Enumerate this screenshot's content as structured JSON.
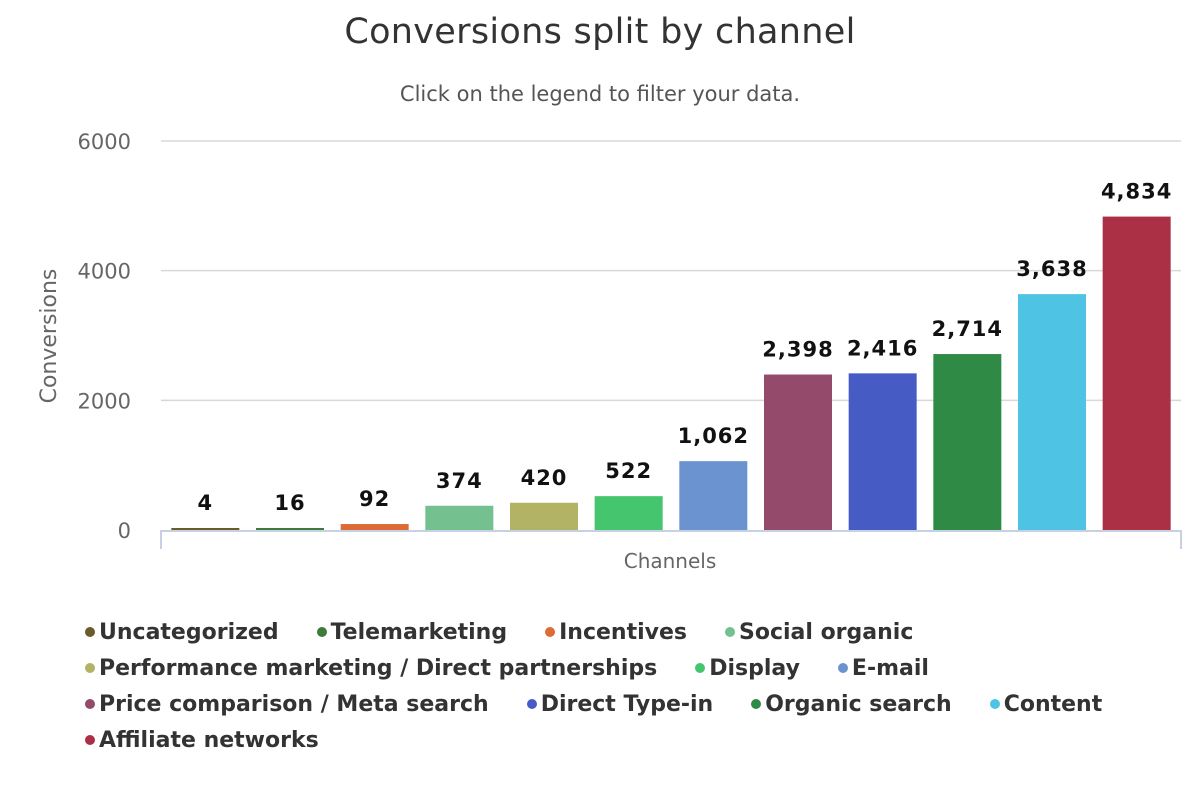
{
  "chart_data": {
    "type": "bar",
    "title": "Conversions split by channel",
    "subtitle": "Click on the legend to filter your data.",
    "xlabel": "Channels",
    "ylabel": "Conversions",
    "ylim": [
      0,
      6000
    ],
    "yticks": [
      "0",
      "2000",
      "4000",
      "6000"
    ],
    "ytick_values": [
      0,
      2000,
      4000,
      6000
    ],
    "grid": true,
    "legend_position": "bottom",
    "series": [
      {
        "name": "Uncategorized",
        "value": 4,
        "label": "4",
        "color": "#6b5a2a"
      },
      {
        "name": "Telemarketing",
        "value": 16,
        "label": "16",
        "color": "#3e7a3a"
      },
      {
        "name": "Incentives",
        "value": 92,
        "label": "92",
        "color": "#dd6b36"
      },
      {
        "name": "Social organic",
        "value": 374,
        "label": "374",
        "color": "#74c08f"
      },
      {
        "name": "Performance marketing / Direct partnerships",
        "value": 420,
        "label": "420",
        "color": "#b2b365"
      },
      {
        "name": "Display",
        "value": 522,
        "label": "522",
        "color": "#45c56e"
      },
      {
        "name": "E-mail",
        "value": 1062,
        "label": "1,062",
        "color": "#6b93cf"
      },
      {
        "name": "Price comparison / Meta search",
        "value": 2398,
        "label": "2,398",
        "color": "#944a6b"
      },
      {
        "name": "Direct Type-in",
        "value": 2416,
        "label": "2,416",
        "color": "#465bc4"
      },
      {
        "name": "Organic search",
        "value": 2714,
        "label": "2,714",
        "color": "#2f8a45"
      },
      {
        "name": "Content",
        "value": 3638,
        "label": "3,638",
        "color": "#4ec3e4"
      },
      {
        "name": "Affiliate networks",
        "value": 4834,
        "label": "4,834",
        "color": "#ab2f45"
      }
    ]
  }
}
